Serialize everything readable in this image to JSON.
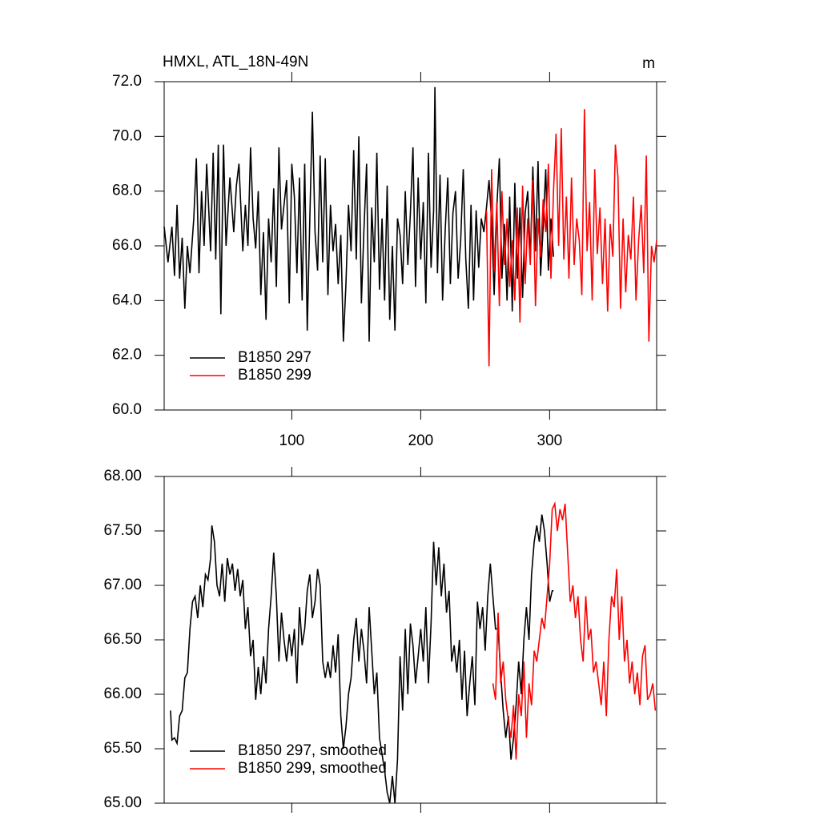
{
  "chart_data": [
    {
      "type": "line",
      "title": "HMXL, ATL_18N-49N",
      "units": "m",
      "xlim": [
        1,
        383
      ],
      "xticks": [
        100,
        200,
        300
      ],
      "show_xtick_labels": true,
      "ylim": [
        60,
        72
      ],
      "yticks": [
        {
          "value": 60,
          "label": "60.0"
        },
        {
          "value": 62,
          "label": "62.0"
        },
        {
          "value": 64,
          "label": "64.0"
        },
        {
          "value": 66,
          "label": "66.0"
        },
        {
          "value": 68,
          "label": "68.0"
        },
        {
          "value": 70,
          "label": "70.0"
        },
        {
          "value": 72,
          "label": "72.0"
        }
      ],
      "legend": "lower left",
      "series": [
        {
          "name": "B1850 297",
          "color": "#000000",
          "x": [
            1,
            4,
            7,
            9,
            11,
            13,
            15,
            17,
            19,
            21,
            24,
            26,
            28,
            30,
            32,
            34,
            37,
            39,
            41,
            43,
            45,
            47,
            49,
            52,
            55,
            57,
            59,
            62,
            64,
            66,
            68,
            70,
            72,
            74,
            76,
            78,
            80,
            82,
            84,
            86,
            88,
            90,
            92,
            94,
            96,
            98,
            100,
            102,
            104,
            106,
            108,
            110,
            112,
            114,
            116,
            118,
            120,
            122,
            124,
            126,
            128,
            130,
            132,
            134,
            136,
            138,
            140,
            142,
            144,
            146,
            148,
            150,
            152,
            154,
            156,
            158,
            160,
            162,
            164,
            166,
            168,
            170,
            172,
            174,
            176,
            178,
            180,
            182,
            184,
            186,
            188,
            190,
            192,
            194,
            196,
            198,
            200,
            202,
            204,
            206,
            208,
            210,
            211,
            213,
            215,
            217,
            219,
            221,
            223,
            225,
            227,
            229,
            231,
            233,
            235,
            237,
            239,
            241,
            243,
            245,
            247,
            249,
            251,
            253,
            255,
            257,
            259,
            261,
            263,
            265,
            267,
            269,
            271,
            273,
            275,
            277,
            279,
            281,
            283,
            285,
            287,
            289,
            291,
            293,
            295,
            297,
            299,
            301,
            303
          ],
          "values": [
            66.7,
            65.4,
            66.7,
            64.9,
            67.5,
            64.8,
            66.3,
            63.7,
            66.0,
            65.0,
            67.0,
            69.2,
            65.0,
            68.0,
            66.0,
            69.0,
            65.8,
            69.4,
            65.5,
            69.7,
            63.5,
            69.7,
            66.0,
            68.5,
            66.5,
            68.2,
            69.0,
            65.8,
            67.5,
            66.0,
            69.6,
            67.0,
            65.9,
            68.0,
            64.2,
            66.5,
            63.3,
            67.0,
            65.4,
            68.1,
            64.5,
            69.6,
            66.6,
            67.5,
            68.4,
            63.9,
            69.0,
            67.8,
            65.0,
            68.5,
            64.0,
            69.0,
            62.9,
            67.0,
            70.9,
            66.5,
            65.1,
            69.3,
            65.4,
            69.2,
            64.2,
            67.5,
            65.8,
            66.8,
            64.6,
            66.4,
            62.5,
            64.6,
            67.5,
            65.8,
            69.5,
            65.5,
            70.0,
            63.9,
            66.6,
            69.0,
            62.5,
            67.4,
            65.4,
            69.4,
            64.4,
            67.0,
            64.0,
            68.2,
            63.3,
            66.0,
            62.9,
            67.0,
            66.4,
            64.6,
            68.0,
            65.3,
            67.2,
            69.6,
            64.5,
            68.5,
            65.5,
            67.6,
            63.9,
            69.4,
            65.2,
            67.3,
            71.8,
            65.0,
            68.6,
            64.0,
            66.6,
            68.5,
            64.6,
            67.2,
            68.0,
            64.8,
            66.2,
            68.8,
            65.5,
            63.7,
            67.5,
            64.0,
            67.3,
            65.2,
            67.0,
            66.5,
            67.4,
            68.4,
            66.9,
            64.2,
            67.4,
            69.2,
            64.8,
            66.8,
            64.0,
            67.8,
            63.6,
            68.3,
            64.8,
            67.4,
            64.1,
            67.2,
            68.0,
            65.5,
            68.9,
            65.8,
            69.1,
            64.9,
            66.7,
            68.8,
            65.1,
            67.0,
            65.6
          ]
        },
        {
          "name": "B1850 299",
          "color": "#ff0000",
          "x": [
            251,
            253,
            255,
            257,
            259,
            261,
            263,
            265,
            267,
            269,
            271,
            273,
            275,
            277,
            279,
            281,
            283,
            285,
            287,
            289,
            291,
            293,
            295,
            297,
            299,
            301,
            303,
            305,
            307,
            309,
            311,
            313,
            315,
            317,
            319,
            321,
            323,
            325,
            327,
            329,
            331,
            333,
            335,
            337,
            339,
            341,
            343,
            345,
            347,
            349,
            351,
            353,
            355,
            357,
            359,
            361,
            363,
            365,
            367,
            369,
            371,
            373,
            375,
            377,
            379,
            381,
            383
          ],
          "values": [
            67.3,
            61.6,
            68.8,
            65.1,
            67.6,
            63.8,
            68.0,
            65.3,
            67.0,
            64.5,
            66.2,
            64.0,
            67.4,
            63.2,
            68.2,
            64.6,
            67.0,
            65.3,
            68.4,
            63.8,
            67.0,
            65.6,
            67.7,
            66.5,
            69.0,
            64.8,
            68.0,
            70.1,
            66.0,
            70.3,
            65.5,
            67.8,
            64.8,
            68.5,
            65.3,
            67.0,
            66.2,
            64.2,
            71.0,
            65.8,
            67.6,
            64.0,
            68.8,
            65.7,
            67.4,
            64.6,
            67.0,
            63.6,
            66.8,
            65.6,
            69.7,
            68.5,
            63.7,
            67.0,
            64.3,
            66.4,
            65.5,
            67.8,
            64.0,
            66.2,
            67.5,
            65.0,
            69.3,
            62.5,
            66.0,
            65.4,
            66.2
          ]
        }
      ]
    },
    {
      "type": "line",
      "xlim": [
        1,
        383
      ],
      "xticks": [
        100,
        200,
        300
      ],
      "show_xtick_labels": false,
      "ylim": [
        65,
        68
      ],
      "yticks": [
        {
          "value": 65,
          "label": "65.00"
        },
        {
          "value": 65.5,
          "label": "65.50"
        },
        {
          "value": 66,
          "label": "66.00"
        },
        {
          "value": 66.5,
          "label": "66.50"
        },
        {
          "value": 67,
          "label": "67.00"
        },
        {
          "value": 67.5,
          "label": "67.50"
        },
        {
          "value": 68,
          "label": "68.00"
        }
      ],
      "legend": "lower left",
      "series": [
        {
          "name": "B1850 297, smoothed",
          "color": "#000000",
          "x": [
            6,
            7,
            9,
            11,
            13,
            15,
            17,
            19,
            21,
            23,
            25,
            27,
            29,
            31,
            33,
            35,
            37,
            38,
            40,
            42,
            44,
            46,
            48,
            50,
            52,
            54,
            56,
            58,
            60,
            62,
            64,
            66,
            68,
            70,
            72,
            74,
            76,
            78,
            80,
            82,
            84,
            86,
            88,
            90,
            92,
            94,
            96,
            98,
            100,
            102,
            104,
            106,
            108,
            110,
            112,
            114,
            116,
            118,
            120,
            122,
            124,
            126,
            128,
            130,
            132,
            134,
            136,
            138,
            140,
            142,
            144,
            146,
            148,
            150,
            152,
            154,
            156,
            158,
            160,
            162,
            164,
            166,
            168,
            170,
            172,
            174,
            176,
            178,
            180,
            182,
            184,
            186,
            188,
            190,
            192,
            194,
            196,
            198,
            200,
            202,
            204,
            206,
            208,
            210,
            212,
            214,
            216,
            218,
            220,
            222,
            224,
            226,
            228,
            230,
            232,
            234,
            236,
            238,
            240,
            242,
            244,
            246,
            248,
            250,
            252,
            254,
            256,
            258,
            260,
            262,
            264,
            266,
            268,
            270,
            272,
            274,
            276,
            278,
            280,
            282,
            284,
            286,
            288,
            290,
            292,
            294,
            296,
            298,
            300,
            302,
            303
          ],
          "values": [
            65.85,
            65.58,
            65.6,
            65.55,
            65.8,
            65.85,
            66.15,
            66.2,
            66.6,
            66.85,
            66.9,
            66.7,
            67.0,
            66.8,
            67.1,
            67.05,
            67.25,
            67.55,
            67.4,
            67.0,
            66.9,
            67.2,
            66.85,
            67.25,
            67.1,
            67.2,
            66.95,
            67.15,
            66.9,
            67.05,
            66.6,
            66.8,
            66.35,
            66.5,
            65.95,
            66.25,
            66.0,
            66.35,
            66.1,
            66.6,
            66.9,
            67.3,
            66.9,
            66.3,
            66.75,
            66.5,
            66.3,
            66.55,
            66.35,
            66.6,
            66.1,
            66.8,
            66.45,
            66.6,
            66.95,
            67.1,
            66.7,
            66.85,
            67.15,
            67.0,
            66.3,
            66.15,
            66.3,
            66.15,
            66.45,
            66.2,
            66.55,
            65.8,
            65.5,
            65.7,
            66.0,
            66.15,
            66.5,
            66.7,
            66.3,
            66.6,
            66.4,
            66.1,
            66.8,
            66.4,
            66.0,
            66.2,
            65.6,
            65.45,
            65.3,
            65.1,
            65.0,
            65.25,
            65.0,
            65.4,
            66.35,
            65.85,
            66.6,
            66.0,
            66.65,
            66.45,
            66.1,
            66.35,
            66.6,
            66.3,
            66.8,
            66.1,
            66.65,
            67.4,
            67.0,
            67.35,
            66.9,
            67.2,
            66.75,
            66.95,
            66.3,
            66.45,
            66.2,
            66.5,
            65.95,
            66.4,
            65.8,
            66.1,
            66.35,
            65.9,
            66.85,
            66.6,
            66.8,
            66.4,
            66.9,
            67.2,
            66.9,
            66.6,
            66.6,
            66.2,
            65.85,
            65.6,
            65.8,
            65.4,
            65.6,
            65.9,
            66.3,
            66.0,
            66.5,
            66.8,
            66.5,
            67.1,
            67.4,
            67.55,
            67.4,
            67.65,
            67.5,
            67.2,
            66.85,
            66.95,
            66.95
          ]
        },
        {
          "name": "B1850 299, smoothed",
          "color": "#ff0000",
          "x": [
            256,
            258,
            260,
            262,
            264,
            266,
            268,
            270,
            272,
            274,
            276,
            278,
            280,
            282,
            284,
            286,
            288,
            290,
            292,
            294,
            296,
            298,
            300,
            302,
            304,
            306,
            308,
            310,
            312,
            314,
            316,
            318,
            320,
            322,
            324,
            326,
            328,
            330,
            332,
            334,
            336,
            338,
            340,
            342,
            344,
            346,
            348,
            350,
            352,
            354,
            356,
            358,
            360,
            362,
            364,
            366,
            368,
            370,
            372,
            374,
            376,
            378,
            380,
            382
          ],
          "values": [
            66.1,
            65.95,
            66.75,
            66.1,
            66.3,
            65.95,
            65.75,
            65.6,
            65.9,
            65.4,
            66.0,
            65.8,
            66.3,
            65.6,
            66.1,
            65.9,
            66.4,
            66.3,
            66.5,
            66.7,
            66.6,
            66.9,
            67.2,
            67.7,
            67.75,
            67.5,
            67.7,
            67.6,
            67.75,
            67.3,
            66.85,
            67.0,
            66.7,
            66.9,
            66.5,
            66.3,
            66.9,
            66.5,
            66.6,
            66.2,
            66.3,
            66.1,
            65.9,
            66.3,
            65.8,
            66.5,
            66.9,
            66.8,
            67.15,
            66.5,
            66.9,
            66.3,
            66.5,
            66.1,
            66.3,
            66.0,
            66.2,
            65.9,
            66.35,
            66.45,
            65.95,
            66.0,
            66.1,
            65.85
          ]
        }
      ]
    }
  ]
}
